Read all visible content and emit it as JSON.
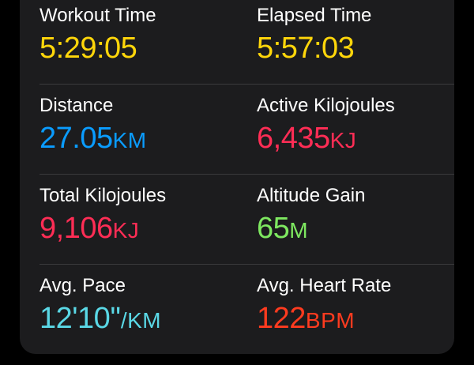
{
  "stats": [
    {
      "label": "Workout Time",
      "value": "5:29:05",
      "unit": "",
      "color": "#ffd60a"
    },
    {
      "label": "Elapsed Time",
      "value": "5:57:03",
      "unit": "",
      "color": "#ffd60a"
    },
    {
      "label": "Distance",
      "value": "27.05",
      "unit": "KM",
      "color": "#0a9cff"
    },
    {
      "label": "Active Kilojoules",
      "value": "6,435",
      "unit": "KJ",
      "color": "#ff2d55"
    },
    {
      "label": "Total Kilojoules",
      "value": "9,106",
      "unit": "KJ",
      "color": "#ff2d55"
    },
    {
      "label": "Altitude Gain",
      "value": "65",
      "unit": "M",
      "color": "#7ee860"
    },
    {
      "label": "Avg. Pace",
      "value": "12'10''",
      "unit": "/KM",
      "color": "#5ad8e6"
    },
    {
      "label": "Avg. Heart Rate",
      "value": "122",
      "unit": "BPM",
      "color": "#ff3b1f"
    }
  ]
}
